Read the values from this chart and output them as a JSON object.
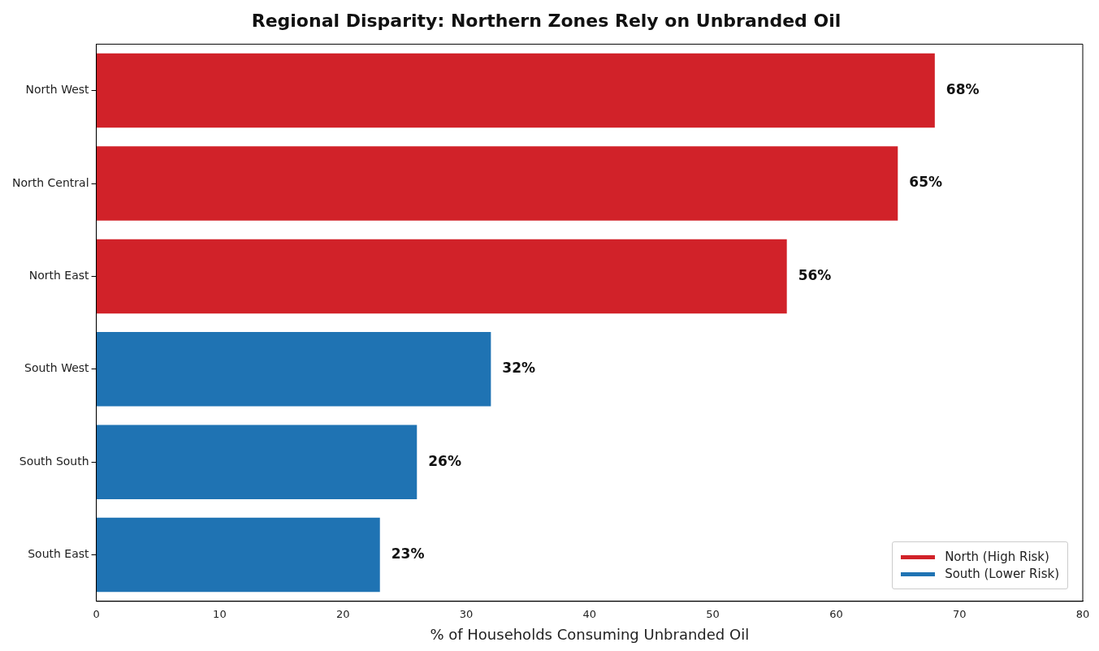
{
  "chart_data": {
    "type": "bar",
    "orientation": "horizontal",
    "title": "Regional Disparity: Northern Zones Rely on Unbranded Oil",
    "xlabel": "% of Households Consuming Unbranded Oil",
    "categories": [
      "North West",
      "North Central",
      "North East",
      "South West",
      "South South",
      "South East"
    ],
    "series": [
      {
        "name": "North (High Risk)",
        "color": "#d12229",
        "values": [
          68,
          65,
          56,
          null,
          null,
          null
        ],
        "value_labels": [
          "68%",
          "65%",
          "56%",
          null,
          null,
          null
        ]
      },
      {
        "name": "South (Lower Risk)",
        "color": "#1f73b3",
        "values": [
          null,
          null,
          null,
          32,
          26,
          23
        ],
        "value_labels": [
          null,
          null,
          null,
          "32%",
          "26%",
          "23%"
        ]
      }
    ],
    "xlim": [
      0,
      80
    ],
    "xticks": [
      0,
      10,
      20,
      30,
      40,
      50,
      60,
      70,
      80
    ],
    "grid": false,
    "legend": "bottom right"
  }
}
